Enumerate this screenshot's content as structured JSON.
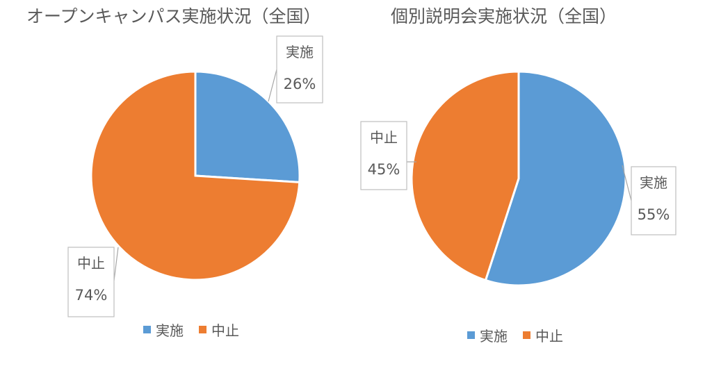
{
  "chart_data": [
    {
      "type": "pie",
      "title": "オープンキャンパス実施状況（全国）",
      "categories": [
        "実施",
        "中止"
      ],
      "values": [
        26,
        74
      ],
      "data_labels": [
        "26%",
        "74%"
      ],
      "colors": [
        "#5B9BD5",
        "#ED7D31"
      ],
      "legend": "bottom"
    },
    {
      "type": "pie",
      "title": "個別説明会実施状況（全国）",
      "categories": [
        "実施",
        "中止"
      ],
      "values": [
        55,
        45
      ],
      "data_labels": [
        "55%",
        "45%"
      ],
      "colors": [
        "#5B9BD5",
        "#ED7D31"
      ],
      "legend": "bottom"
    }
  ]
}
